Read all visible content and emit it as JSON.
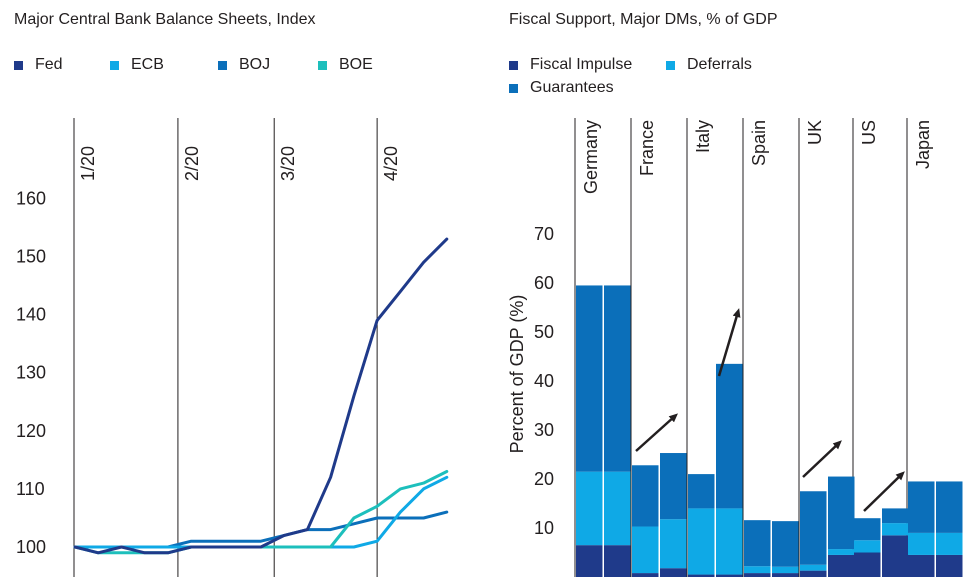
{
  "colors": {
    "navy": "#1f3a8a",
    "light_blue": "#0fa9e6",
    "mid_blue": "#0b6fba",
    "teal": "#1dbfbc",
    "arrow": "#231f20"
  },
  "left": {
    "title": "Major Central Bank Balance Sheets, Index",
    "legend": [
      "Fed",
      "ECB",
      "BOJ",
      "BOE"
    ]
  },
  "right": {
    "title": "Fiscal Support, Major DMs, % of GDP",
    "legend": [
      "Fiscal Impulse",
      "Deferrals",
      "Guarantees"
    ]
  },
  "chart_data": [
    {
      "type": "line",
      "title": "Major Central Bank Balance Sheets, Index",
      "x_ticks": [
        "1/20",
        "2/20",
        "3/20",
        "4/20"
      ],
      "ylim": [
        97,
        172
      ],
      "y_ticks": [
        100,
        110,
        120,
        130,
        140,
        150,
        160
      ],
      "x_dates": [
        "2020-01-01",
        "2020-01-08",
        "2020-01-15",
        "2020-01-22",
        "2020-01-29",
        "2020-02-05",
        "2020-02-12",
        "2020-02-19",
        "2020-02-26",
        "2020-03-04",
        "2020-03-11",
        "2020-03-18",
        "2020-03-25",
        "2020-04-01",
        "2020-04-08",
        "2020-04-15",
        "2020-04-22"
      ],
      "series": [
        {
          "name": "Fed",
          "values": [
            100,
            99,
            100,
            99,
            99,
            100,
            100,
            100,
            100,
            102,
            103,
            112,
            126,
            139,
            144,
            149,
            153
          ]
        },
        {
          "name": "ECB",
          "values": [
            100,
            100,
            100,
            100,
            100,
            100,
            100,
            100,
            100,
            100,
            100,
            100,
            100,
            101,
            106,
            110,
            112
          ]
        },
        {
          "name": "BOJ",
          "values": [
            100,
            100,
            100,
            100,
            100,
            101,
            101,
            101,
            101,
            102,
            103,
            103,
            104,
            105,
            105,
            105,
            106
          ]
        },
        {
          "name": "BOE",
          "values": [
            100,
            99,
            99,
            99,
            99,
            100,
            100,
            100,
            100,
            100,
            100,
            100,
            105,
            107,
            110,
            111,
            113
          ]
        }
      ]
    },
    {
      "type": "bar",
      "stacked": true,
      "title": "Fiscal Support, Major DMs, % of GDP",
      "ylabel": "Percent of GDP (%)",
      "ylim": [
        0,
        80
      ],
      "y_ticks": [
        10,
        20,
        30,
        40,
        50,
        60,
        70
      ],
      "groups": [
        "Germany",
        "France",
        "Italy",
        "Spain",
        "UK",
        "US",
        "Japan"
      ],
      "bars": [
        {
          "group": "Germany",
          "fiscal_impulse": 6.5,
          "deferrals": 15,
          "guarantees": 38
        },
        {
          "group": "Germany",
          "fiscal_impulse": 6.5,
          "deferrals": 15,
          "guarantees": 38
        },
        {
          "group": "France",
          "fiscal_impulse": 0.8,
          "deferrals": 9.5,
          "guarantees": 12.5
        },
        {
          "group": "France",
          "fiscal_impulse": 1.8,
          "deferrals": 10,
          "guarantees": 13.5
        },
        {
          "group": "Italy",
          "fiscal_impulse": 0.5,
          "deferrals": 13.5,
          "guarantees": 7
        },
        {
          "group": "Italy",
          "fiscal_impulse": 0.5,
          "deferrals": 13.5,
          "guarantees": 29.5
        },
        {
          "group": "Spain",
          "fiscal_impulse": 0.8,
          "deferrals": 1.4,
          "guarantees": 9.4
        },
        {
          "group": "Spain",
          "fiscal_impulse": 0.8,
          "deferrals": 1.3,
          "guarantees": 9.3
        },
        {
          "group": "UK",
          "fiscal_impulse": 1.3,
          "deferrals": 1.2,
          "guarantees": 15
        },
        {
          "group": "UK",
          "fiscal_impulse": 4.5,
          "deferrals": 1.2,
          "guarantees": 14.8
        },
        {
          "group": "US",
          "fiscal_impulse": 5,
          "deferrals": 2.5,
          "guarantees": 4.5
        },
        {
          "group": "US",
          "fiscal_impulse": 8.5,
          "deferrals": 2.5,
          "guarantees": 3
        },
        {
          "group": "Japan",
          "fiscal_impulse": 4.5,
          "deferrals": 4.5,
          "guarantees": 10.5
        },
        {
          "group": "Japan",
          "fiscal_impulse": 4.5,
          "deferrals": 4.5,
          "guarantees": 10.5
        }
      ],
      "annotations": [
        {
          "type": "arrow",
          "from": [
            23,
            0
          ],
          "to": [
            32,
            0
          ],
          "between": [
            "France",
            "France"
          ]
        },
        {
          "type": "arrow",
          "from": [
            44,
            0
          ],
          "to": [
            54,
            0
          ],
          "between": [
            "Italy",
            "Italy"
          ]
        },
        {
          "type": "arrow",
          "from": [
            19,
            0
          ],
          "to": [
            27,
            0
          ],
          "between": [
            "UK",
            "UK"
          ]
        },
        {
          "type": "arrow",
          "from": [
            12,
            0
          ],
          "to": [
            19,
            0
          ],
          "between": [
            "US",
            "Japan"
          ]
        }
      ]
    }
  ]
}
